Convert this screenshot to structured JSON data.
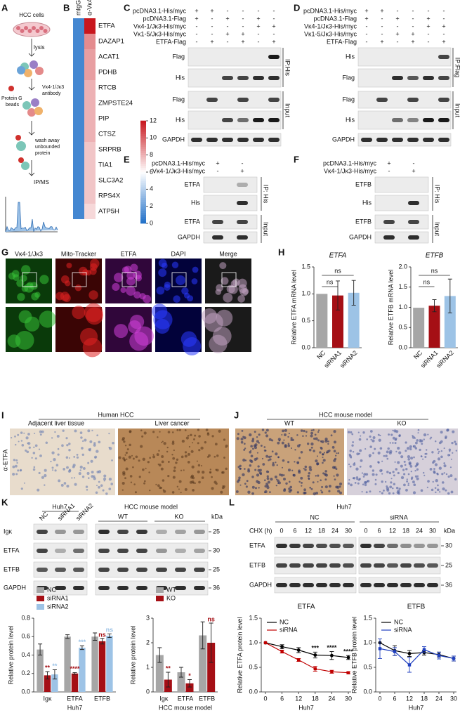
{
  "figure": {
    "panel_labels": [
      "A",
      "B",
      "C",
      "D",
      "E",
      "F",
      "G",
      "H",
      "I",
      "J",
      "K",
      "L"
    ],
    "a": {
      "top": "HCC cells",
      "lysis": "lysis",
      "antibody": [
        "Vκ4-1/Jκ3",
        "antibody"
      ],
      "beads": [
        "Protein G",
        "beads"
      ],
      "wash": [
        "wash away",
        "unbounded",
        "protein"
      ],
      "ipms": "IP/MS"
    },
    "c": {
      "rows": [
        {
          "name": "pcDNA3.1-His/myc",
          "signs": [
            "+",
            "+",
            "-",
            "-",
            "-",
            "-"
          ]
        },
        {
          "name": "pcDNA3.1-Flag",
          "signs": [
            "+",
            "-",
            "+",
            "-",
            "+",
            "-"
          ]
        },
        {
          "name": "Vκ4-1/Jκ3-His/myc",
          "signs": [
            "-",
            "-",
            "-",
            "-",
            "+",
            "+"
          ]
        },
        {
          "name": "Vκ1-5/Jκ3-His/myc",
          "signs": [
            "-",
            "-",
            "+",
            "+",
            "-",
            "-"
          ]
        },
        {
          "name": "ETFA-Flag",
          "signs": [
            "-",
            "+",
            "-",
            "+",
            "-",
            "+"
          ]
        }
      ],
      "blots": [
        "Flag",
        "His",
        "Flag",
        "His",
        "GAPDH"
      ],
      "groups": [
        "IP:His",
        "Input"
      ]
    },
    "d": {
      "rows": [
        {
          "name": "pcDNA3.1-His/myc",
          "signs": [
            "+",
            "+",
            "-",
            "-",
            "-",
            "-"
          ]
        },
        {
          "name": "pcDNA3.1-Flag",
          "signs": [
            "+",
            "-",
            "+",
            "-",
            "+",
            "-"
          ]
        },
        {
          "name": "Vκ4-1/Jκ3-His/myc",
          "signs": [
            "-",
            "-",
            "-",
            "-",
            "+",
            "+"
          ]
        },
        {
          "name": "Vκ1-5/Jκ3-His/myc",
          "signs": [
            "-",
            "-",
            "+",
            "+",
            "-",
            "-"
          ]
        },
        {
          "name": "ETFA-Flag",
          "signs": [
            "-",
            "+",
            "-",
            "+",
            "-",
            "+"
          ]
        }
      ],
      "blots": [
        "His",
        "Flag",
        "Flag",
        "His",
        "GAPDH"
      ],
      "groups": [
        "IP:Flag",
        "Input"
      ]
    },
    "e": {
      "rows": [
        {
          "name": "pcDNA3.1-His/myc",
          "signs": [
            "+",
            "-"
          ]
        },
        {
          "name": "Vκ4-1/Jκ3-His/myc",
          "signs": [
            "-",
            "+"
          ]
        }
      ],
      "blots": [
        "ETFA",
        "His",
        "ETFA",
        "GAPDH"
      ],
      "groups": [
        "IP: His",
        "Input"
      ]
    },
    "f": {
      "rows": [
        {
          "name": "pcDNA3.1-His/myc",
          "signs": [
            "+",
            "-"
          ]
        },
        {
          "name": "Vκ4-1/Jκ3-His/myc",
          "signs": [
            "-",
            "+"
          ]
        }
      ],
      "blots": [
        "ETFB",
        "His",
        "ETFB",
        "GAPDH"
      ],
      "groups": [
        "IP: His",
        "Input"
      ]
    },
    "g": {
      "channels": [
        "Vκ4-1/Jκ3",
        "Mito-Tracker",
        "ETFA",
        "DAPI",
        "Merge"
      ]
    },
    "i": {
      "title": "Human HCC",
      "columns": [
        "Adjacent liver tissue",
        "Liver cancer"
      ],
      "stain": "α-ETFA"
    },
    "j": {
      "title": "HCC mouse model",
      "columns": [
        "WT",
        "KO"
      ]
    },
    "k": {
      "left_title": "Huh7",
      "lanes": [
        "NC",
        "siRNA1",
        "siRNA2"
      ],
      "right_title": "HCC mouse model",
      "groups": [
        "WT",
        "KO"
      ],
      "rows": [
        "Igκ",
        "ETFA",
        "ETFB",
        "GAPDH"
      ],
      "kda_title": "kDa",
      "kda": [
        25,
        30,
        25,
        36
      ]
    },
    "l": {
      "title": "Huh7",
      "groups": [
        "NC",
        "siRNA"
      ],
      "time_label": "CHX (h)",
      "times": [
        0,
        6,
        12,
        18,
        24,
        30
      ],
      "rows": [
        "ETFA",
        "ETFB",
        "GAPDH"
      ],
      "kda_title": "kDa",
      "kda": [
        30,
        25,
        36
      ]
    }
  },
  "chart_data": [
    {
      "type": "heatmap",
      "columns": [
        "mIgG",
        "α-Vκ4-1/Jκ3"
      ],
      "rows": [
        "ETFA",
        "DAZAP1",
        "ACAT1",
        "PDHB",
        "RTCB",
        "ZMPSTE24",
        "PIP",
        "CTSZ",
        "SRPRB",
        "TIA1",
        "SLC3A2",
        "RPS4X",
        "ATP5H"
      ],
      "values": [
        [
          1,
          12
        ],
        [
          1,
          9
        ],
        [
          1,
          8.5
        ],
        [
          1,
          8.5
        ],
        [
          1,
          8
        ],
        [
          1,
          8
        ],
        [
          1,
          8
        ],
        [
          1,
          8
        ],
        [
          1,
          7.5
        ],
        [
          1,
          7.5
        ],
        [
          1,
          7.5
        ],
        [
          1,
          7.5
        ],
        [
          1,
          7
        ]
      ],
      "zlim": [
        0,
        12
      ],
      "zticks": [
        0,
        2,
        4,
        6,
        8,
        10,
        12
      ]
    },
    {
      "type": "bar",
      "title": "ETFA",
      "ylabel": "Relative ETFA mRNA level",
      "categories": [
        "NC",
        "siRNA1",
        "siRNA2"
      ],
      "values": [
        1.0,
        0.97,
        1.02
      ],
      "errors": [
        0,
        0.27,
        0.23
      ],
      "colors": [
        "#a6a6a6",
        "#a50f15",
        "#9dc3e6"
      ],
      "ylim": [
        0,
        1.5
      ],
      "yticks": [
        {
          "value": 0,
          "label": "0.0"
        },
        {
          "value": 0.5,
          "label": "0.5"
        },
        {
          "value": 1,
          "label": "1.0"
        },
        {
          "value": 1.5,
          "label": "1.5"
        }
      ],
      "comparisons": [
        {
          "label": "ns",
          "groups": [
            "NC",
            "siRNA1"
          ]
        },
        {
          "label": "ns",
          "groups": [
            "NC",
            "siRNA2"
          ]
        }
      ]
    },
    {
      "type": "bar",
      "title": "ETFB",
      "ylabel": "Relative ETFB mRNA level",
      "categories": [
        "NC",
        "siRNA1",
        "siRNA2"
      ],
      "values": [
        0.99,
        1.04,
        1.28
      ],
      "errors": [
        0,
        0.15,
        0.42
      ],
      "colors": [
        "#a6a6a6",
        "#a50f15",
        "#9dc3e6"
      ],
      "ylim": [
        0,
        2
      ],
      "yticks": [
        {
          "value": 0,
          "label": "0.0"
        },
        {
          "value": 0.5,
          "label": "0.5"
        },
        {
          "value": 1,
          "label": "1.0"
        },
        {
          "value": 1.5,
          "label": "1.5"
        },
        {
          "value": 2,
          "label": "2.0"
        }
      ],
      "comparisons": [
        {
          "label": "ns",
          "groups": [
            "NC",
            "siRNA1"
          ]
        },
        {
          "label": "ns",
          "groups": [
            "NC",
            "siRNA2"
          ]
        }
      ]
    },
    {
      "type": "grouped_bar",
      "ylabel": "Relative protein level",
      "xlabel": "Huh7",
      "categories": [
        "Igκ",
        "ETFA",
        "ETFB"
      ],
      "series": [
        {
          "name": "NC",
          "color": "#a6a6a6",
          "values": [
            0.46,
            0.6,
            0.6
          ],
          "errors": [
            0.06,
            0.02,
            0.04
          ]
        },
        {
          "name": "siRNA1",
          "color": "#a50f15",
          "values": [
            0.18,
            0.2,
            0.55
          ],
          "errors": [
            0.04,
            0.01,
            0.03
          ]
        },
        {
          "name": "siRNA2",
          "color": "#9dc3e6",
          "values": [
            0.19,
            0.48,
            0.61
          ],
          "errors": [
            0.05,
            0.02,
            0.02
          ]
        }
      ],
      "ylim": [
        0,
        0.8
      ],
      "yticks": [
        {
          "value": 0,
          "label": "0.0"
        },
        {
          "value": 0.2,
          "label": "0.2"
        },
        {
          "value": 0.4,
          "label": "0.4"
        },
        {
          "value": 0.6,
          "label": "0.6"
        },
        {
          "value": 0.8,
          "label": "0.8"
        }
      ],
      "annotations": [
        {
          "category": "Igκ",
          "series": "siRNA1",
          "label": "**"
        },
        {
          "category": "Igκ",
          "series": "siRNA2",
          "label": "**"
        },
        {
          "category": "ETFA",
          "series": "siRNA1",
          "label": "****"
        },
        {
          "category": "ETFA",
          "series": "siRNA2",
          "label": "***"
        },
        {
          "category": "ETFB",
          "series": "siRNA1",
          "label": "ns"
        },
        {
          "category": "ETFB",
          "series": "siRNA2",
          "label": "ns"
        }
      ]
    },
    {
      "type": "grouped_bar",
      "ylabel": "Relative protein level",
      "xlabel": "HCC mouse model",
      "categories": [
        "Igκ",
        "ETFA",
        "ETFB"
      ],
      "series": [
        {
          "name": "WT",
          "color": "#a6a6a6",
          "values": [
            1.5,
            0.8,
            2.3
          ],
          "errors": [
            0.3,
            0.2,
            0.55
          ]
        },
        {
          "name": "KO",
          "color": "#a50f15",
          "values": [
            0.5,
            0.35,
            2.0
          ],
          "errors": [
            0.3,
            0.15,
            0.8
          ]
        }
      ],
      "ylim": [
        0,
        3
      ],
      "yticks": [
        0,
        1,
        2,
        3
      ],
      "annotations": [
        {
          "category": "Igκ",
          "series": "KO",
          "label": "**"
        },
        {
          "category": "ETFA",
          "series": "KO",
          "label": "*"
        },
        {
          "category": "ETFB",
          "series": "KO",
          "label": "ns"
        }
      ]
    },
    {
      "type": "line",
      "title": "ETFA",
      "ylabel": "Relative ETFA protein level",
      "xlabel": "Huh7",
      "x": [
        0,
        6,
        12,
        18,
        24,
        30
      ],
      "series": [
        {
          "name": "NC",
          "color": "#000000",
          "values": [
            1.0,
            0.92,
            0.85,
            0.75,
            0.74,
            0.7
          ],
          "errors": [
            0,
            0.04,
            0.05,
            0.06,
            0.08,
            0.04
          ]
        },
        {
          "name": "siRNA",
          "color": "#c00000",
          "values": [
            1.0,
            0.82,
            0.65,
            0.47,
            0.41,
            0.39
          ],
          "errors": [
            0,
            0.03,
            0.03,
            0.05,
            0.03,
            0.02
          ]
        }
      ],
      "xlim": [
        0,
        30
      ],
      "xticks": [
        0,
        6,
        12,
        18,
        24,
        30
      ],
      "ylim": [
        0,
        1.5
      ],
      "yticks": [
        {
          "value": 0,
          "label": "0.0"
        },
        {
          "value": 0.5,
          "label": "0.5"
        },
        {
          "value": 1,
          "label": "1.0"
        },
        {
          "value": 1.5,
          "label": "1.5"
        }
      ],
      "annotations": [
        {
          "x": 18,
          "label": "***"
        },
        {
          "x": 24,
          "label": "****"
        },
        {
          "x": 30,
          "label": "****"
        }
      ]
    },
    {
      "type": "line",
      "title": "ETFB",
      "ylabel": "Relative ETFB protein level",
      "xlabel": "Huh7",
      "x": [
        0,
        6,
        12,
        18,
        24,
        30
      ],
      "series": [
        {
          "name": "NC",
          "color": "#000000",
          "values": [
            1.0,
            0.84,
            0.78,
            0.8,
            0.76,
            0.68
          ],
          "errors": [
            0,
            0.1,
            0.06,
            0.05,
            0.05,
            0.05
          ]
        },
        {
          "name": "siRNA",
          "color": "#1f3fbf",
          "values": [
            0.88,
            0.82,
            0.55,
            0.86,
            0.74,
            0.68
          ],
          "errors": [
            0.2,
            0.08,
            0.15,
            0.06,
            0.07,
            0.05
          ]
        }
      ],
      "xlim": [
        0,
        30
      ],
      "xticks": [
        0,
        6,
        12,
        18,
        24,
        30
      ],
      "ylim": [
        0,
        1.5
      ],
      "yticks": [
        {
          "value": 0,
          "label": "0.0"
        },
        {
          "value": 0.5,
          "label": "0.5"
        },
        {
          "value": 1,
          "label": "1.0"
        },
        {
          "value": 1.5,
          "label": "1.5"
        }
      ],
      "annotations": []
    }
  ]
}
